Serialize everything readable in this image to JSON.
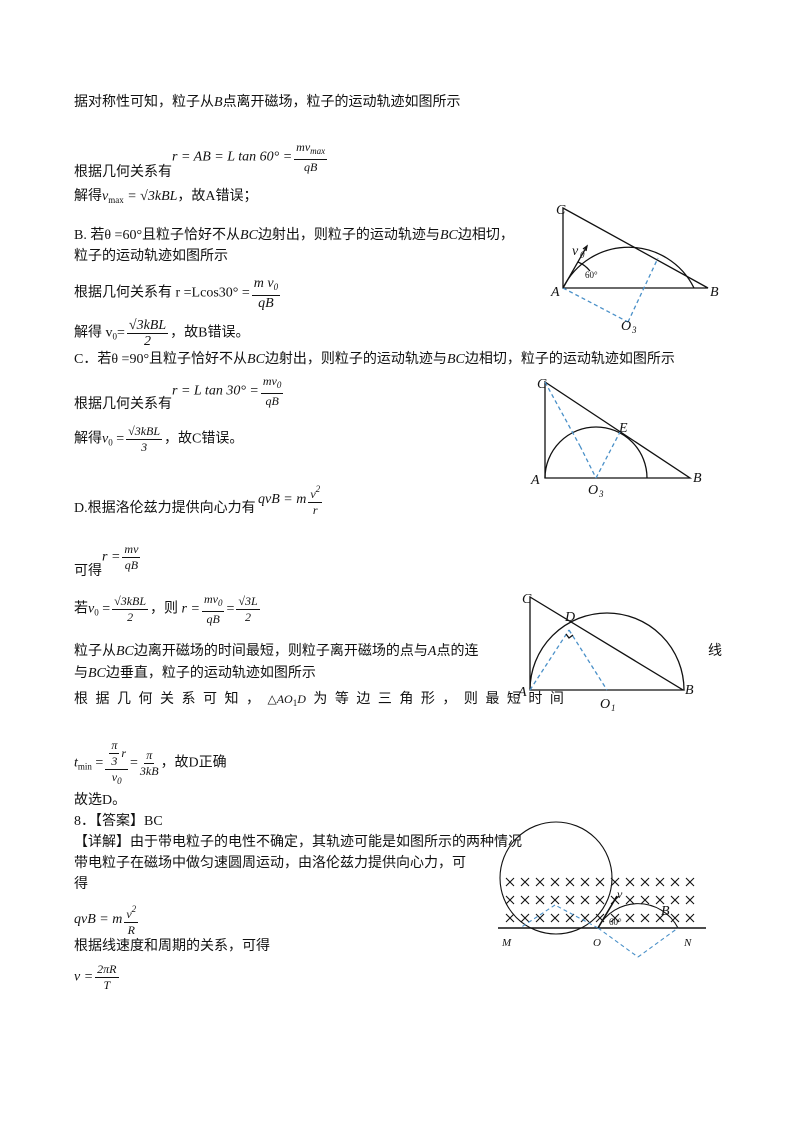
{
  "text": [
    [
      "据对称性可知，粒子从",
      "B",
      "点离开磁场，粒子的运动轨迹如图所示"
    ],
    [
      "r = AB = L tan 60° =",
      "mv",
      "max",
      "qB"
    ],
    [
      "根据几何关系有"
    ],
    [
      "解得",
      "v",
      "max",
      " = √3kBL",
      "，故A错误；"
    ],
    [
      "B. 若θ =60°且粒子恰好不从",
      "BC",
      "边射出，则粒子的运动轨迹与",
      "BC",
      "边相切，"
    ],
    [
      "粒子的运动轨迹如图所示"
    ],
    [
      "根据几何关系有 r =Lcos30° =",
      "m v",
      "0",
      "qB"
    ],
    [
      "解得 v",
      "0",
      "=",
      "√3kBL",
      "2",
      "，故B错误。"
    ],
    [
      "C．若θ =90°且粒子恰好不从",
      "BC",
      "边射出，则粒子的运动轨迹与",
      "BC",
      "边相切，粒子的运动轨迹如图所示"
    ],
    [
      "r = L tan 30° =",
      "mv",
      "0",
      "qB"
    ],
    [
      "根据几何关系有"
    ],
    [
      "解得",
      "v",
      "0",
      " =",
      "√3kBL",
      "3",
      "，故C错误。"
    ],
    [
      "qvB = m",
      "v",
      "2",
      "r"
    ],
    [
      "D.根据洛伦兹力提供向心力有"
    ],
    [
      "r =",
      "mv",
      "qB"
    ],
    [
      "可得"
    ],
    [
      "若",
      "v",
      "0",
      " =",
      "√3kBL",
      "2",
      "，则",
      "r =",
      "mv",
      "0",
      "qB",
      "=",
      "√3L",
      "2"
    ],
    [
      "粒子从",
      "BC",
      "边离开磁场的时间最短，则粒子离开磁场的点与",
      "A",
      "点的连"
    ],
    [
      "线"
    ],
    [
      "与",
      "BC",
      "边垂直，粒子的运动轨迹如图所示"
    ],
    [
      "根 据 几 何 关 系 可 知 ，",
      "△AO",
      "1",
      "D",
      "为 等 边 三 角 形 ， 则 最 短 时 间"
    ],
    [
      "t",
      "min",
      " =",
      "π",
      "3",
      "r",
      "v",
      "0",
      "=",
      "π",
      "3kB",
      "，故D正确"
    ],
    [
      "故选D。"
    ],
    [
      "8．【答案】BC"
    ],
    [
      "【详解】由于带电粒子的电性不确定，其轨迹可能是如图所示的两种情况"
    ],
    [
      "带电粒子在磁场中做匀速圆周运动，由洛伦兹力提供向心力，可"
    ],
    [
      "得"
    ],
    [
      "qvB = m",
      "v",
      "2",
      "R"
    ],
    [
      "根据线速度和周期的关系，可得"
    ],
    [
      "v =",
      "2πR",
      "T"
    ]
  ],
  "figures": [
    [
      "C",
      "v",
      "0",
      "60°",
      "A",
      "B",
      "O",
      "3"
    ],
    [
      "C",
      "E",
      "A",
      "O",
      "3",
      "B"
    ],
    [
      "C",
      "D",
      "A",
      "O",
      "1",
      "B"
    ],
    [
      "v",
      "60°",
      "B",
      "M",
      "O",
      "N"
    ]
  ]
}
